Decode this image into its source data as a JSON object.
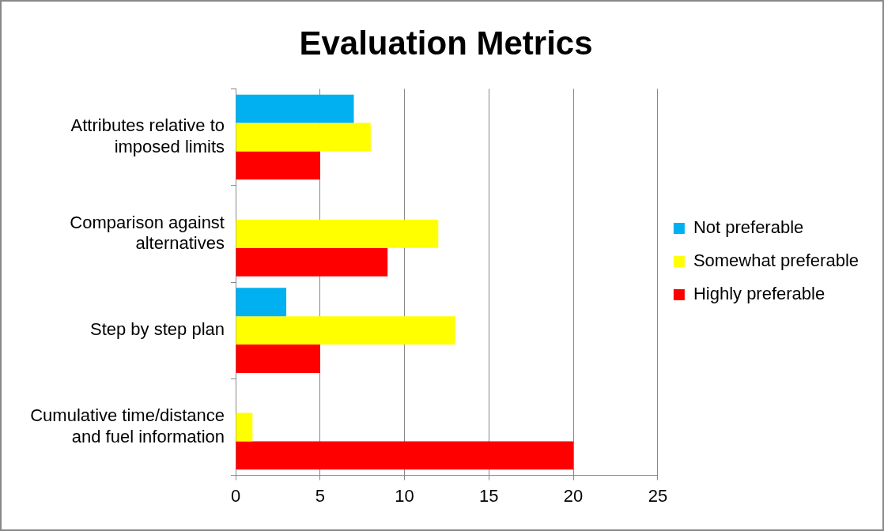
{
  "chart_data": {
    "type": "bar",
    "orientation": "horizontal",
    "title": "Evaluation Metrics",
    "categories": [
      "Attributes relative to imposed limits",
      "Comparison against alternatives",
      "Step by step plan",
      "Cumulative time/distance and fuel information"
    ],
    "series": [
      {
        "name": "Not preferable",
        "color": "#00b0f0",
        "values": [
          7,
          0,
          3,
          0
        ]
      },
      {
        "name": "Somewhat preferable",
        "color": "#ffff00",
        "values": [
          8,
          12,
          13,
          1
        ]
      },
      {
        "name": "Highly preferable",
        "color": "#ff0000",
        "values": [
          5,
          9,
          5,
          20
        ]
      }
    ],
    "xlim": [
      0,
      25
    ],
    "xticks": [
      0,
      5,
      10,
      15,
      20,
      25
    ],
    "grid": "x",
    "legend": "right"
  }
}
